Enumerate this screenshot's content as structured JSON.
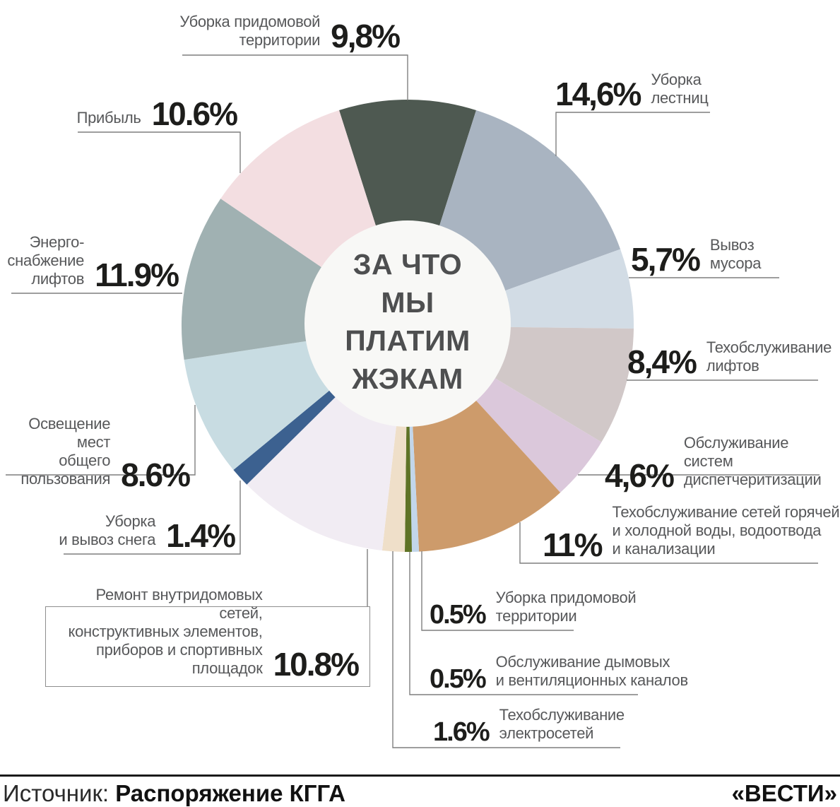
{
  "center_title": {
    "lines": [
      "ЗА ЧТО",
      "МЫ",
      "ПЛАТИМ",
      "ЖЭКАМ"
    ]
  },
  "chart_data": {
    "type": "pie",
    "title": "ЗА ЧТО МЫ ПЛАТИМ ЖЭКАМ",
    "unit": "%",
    "order": "clockwise",
    "start_angle_deg": -17.64,
    "hole_color": "#f8f8f6",
    "segments": [
      {
        "label": "Уборка придомовой территории",
        "value": 9.8,
        "display": "9,8%",
        "color": "#4e5951"
      },
      {
        "label": "Уборка лестниц",
        "value": 14.6,
        "display": "14,6%",
        "color": "#a9b4c1"
      },
      {
        "label": "Вывоз мусора",
        "value": 5.7,
        "display": "5,7%",
        "color": "#d2dce5"
      },
      {
        "label": "Техобслуживание лифтов",
        "value": 8.4,
        "display": "8,4%",
        "color": "#d1c8c8"
      },
      {
        "label": "Обслуживание систем диспетчеритизации",
        "value": 4.6,
        "display": "4,6%",
        "color": "#dbc8db"
      },
      {
        "label": "Техобслуживание сетей горячей и холодной воды, водоотвода и канализации",
        "value": 11,
        "display": "11%",
        "color": "#cd9b6b"
      },
      {
        "label": "Уборка придомовой территории",
        "value": 0.5,
        "display": "0.5%",
        "color": "#c2d6ea"
      },
      {
        "label": "Обслуживание дымовых и вентиляционных каналов",
        "value": 0.5,
        "display": "0.5%",
        "color": "#5f7326"
      },
      {
        "label": "Техобслуживание электросетей",
        "value": 1.6,
        "display": "1.6%",
        "color": "#efdfc9"
      },
      {
        "label": "Ремонт внутридомовых сетей, конструктивных элементов, приборов и спортивных площадок",
        "value": 10.8,
        "display": "10.8%",
        "color": "#f1ecf3"
      },
      {
        "label": "Уборка и вывоз снега",
        "value": 1.4,
        "display": "1.4%",
        "color": "#3c6190"
      },
      {
        "label": "Освещение мест общего пользования",
        "value": 8.6,
        "display": "8.6%",
        "color": "#c8dce2"
      },
      {
        "label": "Энергоснабжение лифтов",
        "value": 11.9,
        "display": "11.9%",
        "color": "#a0b1b2"
      },
      {
        "label": "Прибыль",
        "value": 10.6,
        "display": "10.6%",
        "color": "#f3dee1"
      }
    ]
  },
  "callouts": [
    {
      "pct": "9,8%",
      "lines": [
        "Уборка придомовой",
        "территории"
      ]
    },
    {
      "pct": "10.6%",
      "lines": [
        "Прибыль"
      ]
    },
    {
      "pct": "11.9%",
      "lines": [
        "Энерго-",
        "снабжение",
        "лифтов"
      ]
    },
    {
      "pct": "8.6%",
      "lines": [
        "Освещение мест",
        "общего",
        "пользования"
      ]
    },
    {
      "pct": "1.4%",
      "lines": [
        "Уборка",
        "и вывоз снега"
      ]
    },
    {
      "pct": "10.8%",
      "lines": [
        "Ремонт внутридомовых сетей,",
        "конструктивных элементов,",
        "приборов и спортивных площадок"
      ]
    },
    {
      "pct": "14,6%",
      "lines": [
        "Уборка",
        "лестниц"
      ]
    },
    {
      "pct": "5,7%",
      "lines": [
        "Вывоз",
        "мусора"
      ]
    },
    {
      "pct": "8,4%",
      "lines": [
        "Техобслуживание",
        "лифтов"
      ]
    },
    {
      "pct": "4,6%",
      "lines": [
        "Обслуживание систем",
        "диспетчеритизации"
      ]
    },
    {
      "pct": "11%",
      "lines": [
        "Техобслуживание сетей горячей",
        "и холодной воды, водоотвода",
        "и канализации"
      ]
    },
    {
      "pct": "0.5%",
      "lines": [
        "Уборка придомовой",
        "территории"
      ]
    },
    {
      "pct": "0.5%",
      "lines": [
        "Обслуживание дымовых",
        "и вентиляционных каналов"
      ]
    },
    {
      "pct": "1.6%",
      "lines": [
        "Техобслуживание",
        "электросетей"
      ]
    }
  ],
  "footer": {
    "source_prefix": "Источник: ",
    "source_name": "Распоряжение КГГА",
    "brand": "«ВЕСТИ»"
  }
}
